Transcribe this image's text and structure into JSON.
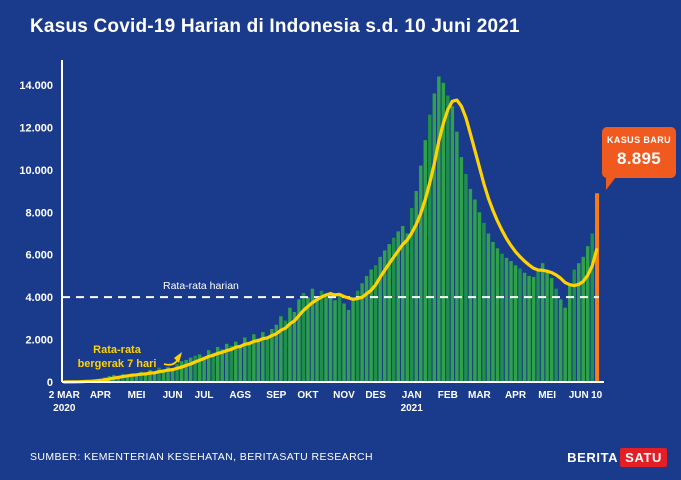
{
  "page": {
    "title": "Kasus Covid-19 Harian di Indonesia s.d. 10 Juni 2021",
    "source": "SUMBER: KEMENTERIAN KESEHATAN, BERITASATU RESEARCH",
    "logo": {
      "part1": "BERITA",
      "part2": "SATU"
    }
  },
  "callout": {
    "label": "KASUS BARU",
    "value": "8.895"
  },
  "colors": {
    "background": "#1a3a8c",
    "bar": "#2fa14b",
    "bar_dark": "#1f8f4d",
    "bar_highlight": "#fb7c12",
    "avg_line": "#ffd200",
    "reference": "#ffffff",
    "callout_bg": "#f05a1e",
    "logo_red": "#e31e24",
    "text": "#ffffff"
  },
  "chart_data": {
    "type": "bar",
    "title": "Kasus Covid-19 Harian di Indonesia s.d. 10 Juni 2021",
    "xlabel": "",
    "ylabel": "",
    "ylim": [
      0,
      14800
    ],
    "grid": false,
    "y_ticks": [
      {
        "value": 0,
        "label": "0"
      },
      {
        "value": 2000,
        "label": "2.000"
      },
      {
        "value": 4000,
        "label": "4.000"
      },
      {
        "value": 6000,
        "label": "6.000"
      },
      {
        "value": 8000,
        "label": "8.000"
      },
      {
        "value": 10000,
        "label": "10.000"
      },
      {
        "value": 12000,
        "label": "12.000"
      },
      {
        "value": 14000,
        "label": "14.000"
      }
    ],
    "x_ticks": [
      {
        "pos": 0,
        "label": "2 MAR",
        "sub": "2020"
      },
      {
        "pos": 8,
        "label": "APR"
      },
      {
        "pos": 16,
        "label": "MEI"
      },
      {
        "pos": 24,
        "label": "JUN"
      },
      {
        "pos": 31,
        "label": "JUL"
      },
      {
        "pos": 39,
        "label": "AGS"
      },
      {
        "pos": 47,
        "label": "SEP"
      },
      {
        "pos": 54,
        "label": "OKT"
      },
      {
        "pos": 62,
        "label": "NOV"
      },
      {
        "pos": 69,
        "label": "DES"
      },
      {
        "pos": 77,
        "label": "JAN",
        "sub": "2021"
      },
      {
        "pos": 85,
        "label": "FEB"
      },
      {
        "pos": 92,
        "label": "MAR"
      },
      {
        "pos": 100,
        "label": "APR"
      },
      {
        "pos": 107,
        "label": "MEI"
      },
      {
        "pos": 114,
        "label": "JUN"
      },
      {
        "pos": 118,
        "label": "10"
      }
    ],
    "reference_line": {
      "value": 4000,
      "label": "Rata-rata harian",
      "style": "dashed",
      "color": "#ffffff"
    },
    "annotation": {
      "lines": [
        "Rata-rata",
        "bergerak 7 hari"
      ]
    },
    "highlight_last": {
      "value": 8895,
      "label": "8.895"
    },
    "series": [
      {
        "name": "Kasus harian",
        "type": "bar",
        "values": [
          2,
          6,
          12,
          25,
          48,
          80,
          105,
          120,
          150,
          220,
          280,
          337,
          300,
          380,
          330,
          400,
          360,
          480,
          420,
          570,
          490,
          680,
          590,
          700,
          630,
          850,
          980,
          1040,
          1150,
          1240,
          1300,
          1200,
          1500,
          1380,
          1650,
          1540,
          1800,
          1700,
          1900,
          1750,
          2100,
          1900,
          2250,
          2050,
          2350,
          2150,
          2500,
          2700,
          3100,
          2900,
          3500,
          3300,
          3900,
          4200,
          4000,
          4400,
          3900,
          4300,
          4050,
          4250,
          3850,
          4150,
          3700,
          3400,
          3900,
          4300,
          4650,
          5000,
          5300,
          5500,
          5900,
          6200,
          6500,
          6800,
          7100,
          7350,
          7000,
          8200,
          9000,
          10200,
          11400,
          12600,
          13600,
          14400,
          14100,
          13500,
          13000,
          11800,
          10600,
          9800,
          9100,
          8600,
          8000,
          7500,
          7000,
          6600,
          6300,
          6050,
          5850,
          5700,
          5500,
          5350,
          5150,
          5000,
          4950,
          5300,
          5600,
          5200,
          4900,
          4400,
          3900,
          3500,
          4600,
          5300,
          5600,
          5900,
          6400,
          7000,
          8895
        ]
      },
      {
        "name": "Rata-rata bergerak 7 hari",
        "type": "line",
        "derived": "trailing_moving_average_7"
      }
    ]
  }
}
